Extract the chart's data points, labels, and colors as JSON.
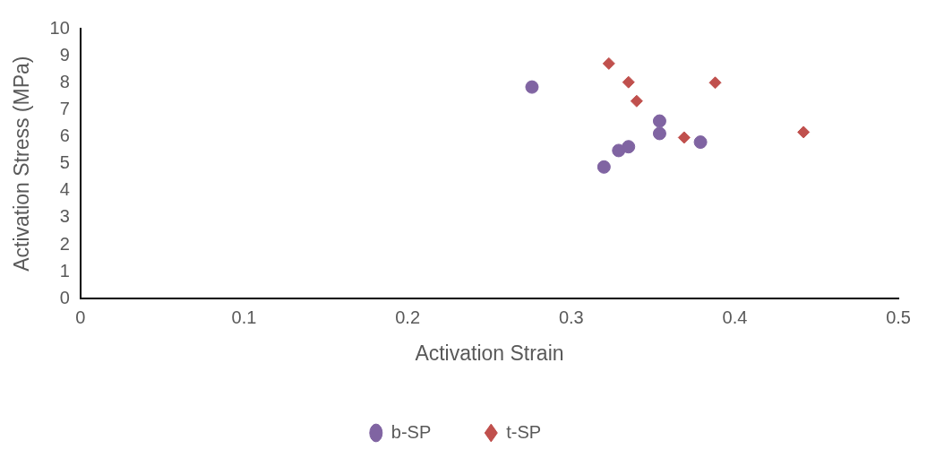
{
  "chart_data": {
    "type": "scatter",
    "xlabel": "Activation Strain",
    "ylabel": "Activation Stress (MPa)",
    "xlim": [
      0,
      0.5
    ],
    "xticks": [
      0,
      0.1,
      0.2,
      0.3,
      0.4,
      0.5
    ],
    "ylim": [
      0,
      10
    ],
    "yticks": [
      0,
      1,
      2,
      3,
      4,
      5,
      6,
      7,
      8,
      9,
      10
    ],
    "grid": false,
    "legend": "bottom",
    "series": [
      {
        "name": "b-SP",
        "color": "#8064a2",
        "marker": "circle",
        "x": [
          0.276,
          0.354,
          0.354,
          0.379,
          0.335,
          0.329,
          0.32
        ],
        "values": [
          7.84,
          6.58,
          6.12,
          5.8,
          5.63,
          5.49,
          4.88
        ]
      },
      {
        "name": "t-SP",
        "color": "#c0504d",
        "marker": "diamond",
        "x": [
          0.323,
          0.335,
          0.34,
          0.388,
          0.369,
          0.442
        ],
        "values": [
          8.71,
          8.02,
          7.32,
          8.0,
          5.97,
          6.17
        ]
      }
    ]
  }
}
